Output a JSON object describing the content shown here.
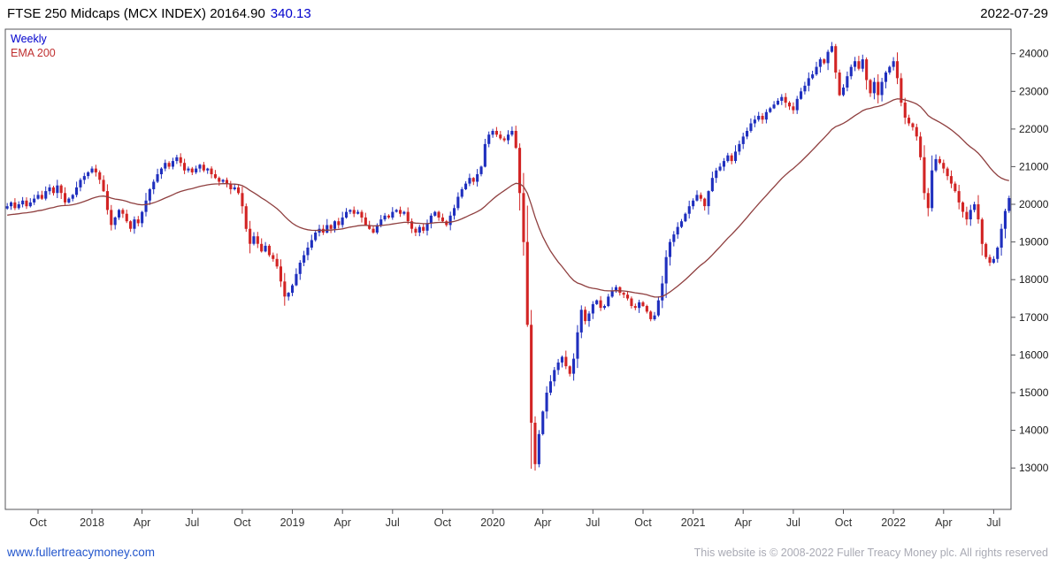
{
  "header": {
    "title": "FTSE 250 Midcaps (MCX INDEX) 20164.90",
    "change": "340.13",
    "date": "2022-07-29"
  },
  "legend": {
    "timeframe": "Weekly",
    "ema": "EMA 200"
  },
  "footer": {
    "link": "www.fullertreacymoney.com",
    "copyright": "This website is © 2008-2022 Fuller Treacy Money plc. All rights reserved"
  },
  "chart_data": {
    "type": "candlestick",
    "title": "FTSE 250 Midcaps (MCX INDEX)",
    "timeframe": "Weekly",
    "last_price": 20164.9,
    "change": 340.13,
    "as_of": "2022-07-29",
    "legend_entries": [
      "Weekly",
      "EMA 200"
    ],
    "grid": false,
    "y_axis_side": "right",
    "ylim": [
      11900,
      24650
    ],
    "yticks": [
      13000,
      14000,
      15000,
      16000,
      17000,
      18000,
      19000,
      20000,
      21000,
      22000,
      23000,
      24000
    ],
    "xticks": [
      {
        "label": "Oct",
        "week": 8
      },
      {
        "label": "2018",
        "week": 22
      },
      {
        "label": "Apr",
        "week": 35
      },
      {
        "label": "Jul",
        "week": 48
      },
      {
        "label": "Oct",
        "week": 61
      },
      {
        "label": "2019",
        "week": 74
      },
      {
        "label": "Apr",
        "week": 87
      },
      {
        "label": "Jul",
        "week": 100
      },
      {
        "label": "Oct",
        "week": 113
      },
      {
        "label": "2020",
        "week": 126
      },
      {
        "label": "Apr",
        "week": 139
      },
      {
        "label": "Jul",
        "week": 152
      },
      {
        "label": "Oct",
        "week": 165
      },
      {
        "label": "2021",
        "week": 178
      },
      {
        "label": "Apr",
        "week": 191
      },
      {
        "label": "Jul",
        "week": 204
      },
      {
        "label": "Oct",
        "week": 217
      },
      {
        "label": "2022",
        "week": 230
      },
      {
        "label": "Apr",
        "week": 243
      },
      {
        "label": "Jul",
        "week": 256
      }
    ],
    "colors": {
      "up": "#1f2fbe",
      "down": "#d22424",
      "ema": "#8f3f3f"
    },
    "ema_period_weeks": 40,
    "ema_start": 19700,
    "weekly_closes": [
      19950,
      20050,
      19900,
      20000,
      20100,
      19950,
      20050,
      20150,
      20250,
      20150,
      20350,
      20450,
      20300,
      20500,
      20300,
      20050,
      20150,
      20250,
      20450,
      20650,
      20750,
      20850,
      20950,
      20850,
      20650,
      20350,
      19850,
      19450,
      19650,
      19850,
      19750,
      19550,
      19350,
      19600,
      19500,
      19800,
      20100,
      20400,
      20600,
      20800,
      20950,
      21100,
      21000,
      21150,
      21250,
      21100,
      20900,
      20950,
      20850,
      20950,
      21050,
      20900,
      20950,
      20800,
      20700,
      20600,
      20650,
      20550,
      20400,
      20450,
      20300,
      19950,
      19350,
      18950,
      19150,
      18950,
      18750,
      18900,
      18650,
      18550,
      18350,
      17950,
      17550,
      17650,
      17850,
      18150,
      18450,
      18650,
      18850,
      19050,
      19250,
      19350,
      19250,
      19450,
      19350,
      19550,
      19450,
      19650,
      19800,
      19850,
      19750,
      19800,
      19650,
      19450,
      19350,
      19250,
      19450,
      19600,
      19700,
      19650,
      19800,
      19850,
      19750,
      19800,
      19550,
      19350,
      19250,
      19400,
      19300,
      19500,
      19700,
      19800,
      19650,
      19550,
      19450,
      19700,
      19900,
      20200,
      20400,
      20550,
      20700,
      20600,
      20800,
      21000,
      21600,
      21850,
      21950,
      21850,
      21750,
      21700,
      21850,
      21950,
      21500,
      20300,
      19000,
      16800,
      14200,
      13100,
      13900,
      14500,
      15000,
      15300,
      15600,
      15800,
      15950,
      15700,
      15500,
      15900,
      16600,
      17200,
      16900,
      17100,
      17350,
      17450,
      17250,
      17300,
      17550,
      17700,
      17800,
      17650,
      17600,
      17500,
      17300,
      17250,
      17400,
      17300,
      17150,
      16950,
      17050,
      17450,
      17900,
      18600,
      19000,
      19200,
      19400,
      19550,
      19750,
      19950,
      20100,
      20250,
      20150,
      19950,
      20350,
      20700,
      20900,
      21000,
      21150,
      21300,
      21150,
      21400,
      21600,
      21800,
      21950,
      22150,
      22250,
      22350,
      22250,
      22450,
      22550,
      22650,
      22750,
      22850,
      22700,
      22600,
      22500,
      22800,
      23000,
      23150,
      23350,
      23450,
      23650,
      23850,
      23750,
      24050,
      24200,
      23500,
      22900,
      23100,
      23400,
      23650,
      23800,
      23600,
      23850,
      23300,
      22950,
      23250,
      22900,
      23250,
      23500,
      23650,
      23800,
      23350,
      22700,
      22300,
      22150,
      22050,
      21800,
      21250,
      20300,
      19900,
      20900,
      21200,
      21100,
      20950,
      20750,
      20550,
      20350,
      20050,
      19800,
      19600,
      19850,
      20000,
      19600,
      18950,
      18600,
      18450,
      18550,
      18850,
      19350,
      19824.8,
      20164.9
    ]
  }
}
